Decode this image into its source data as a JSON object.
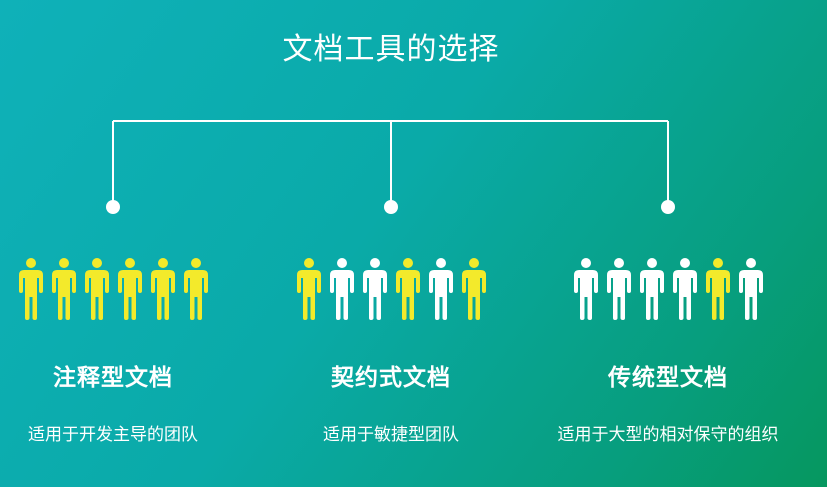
{
  "title": "文档工具的选择",
  "colors": {
    "highlight": "#f3ea2b",
    "normal": "#ffffff",
    "line": "#ffffff"
  },
  "icons": {
    "person": "person-icon"
  },
  "columns": [
    {
      "title": "注释型文档",
      "description": "适用于开发主导的团队",
      "people": [
        true,
        true,
        true,
        true,
        true,
        true
      ]
    },
    {
      "title": "契约式文档",
      "description": "适用于敏捷型团队",
      "people": [
        true,
        false,
        false,
        true,
        false,
        true
      ]
    },
    {
      "title": "传统型文档",
      "description": "适用于大型的相对保守的组织",
      "people": [
        false,
        false,
        false,
        false,
        true,
        false
      ]
    }
  ]
}
